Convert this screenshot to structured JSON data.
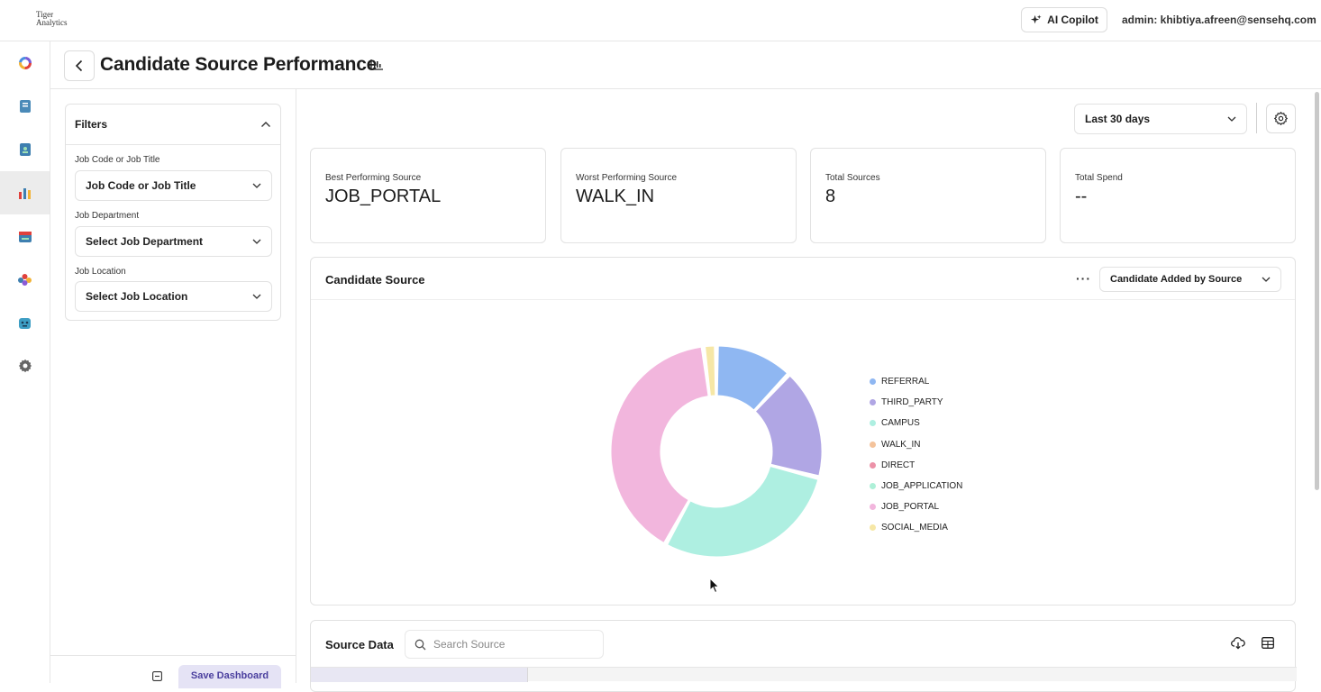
{
  "brand": {
    "line1": "Tiger",
    "line2": "Analytics"
  },
  "header": {
    "copilot_label": "AI Copilot",
    "admin_label": "admin: khibtiya.afreen@sensehq.com"
  },
  "sidebar": {
    "items": [
      {
        "icon": "ring-logo-icon"
      },
      {
        "icon": "notebook-icon"
      },
      {
        "icon": "document-user-icon"
      },
      {
        "icon": "bar-chart-icon",
        "active": true
      },
      {
        "icon": "calendar-icon"
      },
      {
        "icon": "team-icon"
      },
      {
        "icon": "robot-icon"
      },
      {
        "icon": "gear-icon"
      }
    ]
  },
  "page": {
    "title": "Candidate Source Performance",
    "back_icon": "chevron-left-icon"
  },
  "filters": {
    "title": "Filters",
    "fields": [
      {
        "label": "Job Code or Job Title",
        "value": "Job Code or Job Title"
      },
      {
        "label": "Job Department",
        "value": "Select Job Department"
      },
      {
        "label": "Job Location",
        "value": "Select Job Location"
      }
    ],
    "save_label": "Save Dashboard"
  },
  "controls": {
    "date_range": "Last 30 days"
  },
  "stats": [
    {
      "label": "Best Performing Source",
      "value": "JOB_PORTAL"
    },
    {
      "label": "Worst Performing Source",
      "value": "WALK_IN"
    },
    {
      "label": "Total Sources",
      "value": "8"
    },
    {
      "label": "Total Spend",
      "value": "--"
    }
  ],
  "chart": {
    "title": "Candidate Source",
    "more_label": "···",
    "type_selector": "Candidate Added by Source"
  },
  "chart_data": {
    "type": "pie",
    "categories": [
      "REFERRAL",
      "THIRD_PARTY",
      "CAMPUS",
      "WALK_IN",
      "DIRECT",
      "JOB_APPLICATION",
      "JOB_PORTAL",
      "SOCIAL_MEDIA"
    ],
    "values": [
      12,
      17,
      29,
      0,
      0,
      0,
      40,
      2
    ],
    "colors": [
      "#8fb7f2",
      "#b0a6e4",
      "#aeefe1",
      "#f4c39b",
      "#ec92a8",
      "#aef0d8",
      "#f2b6dd",
      "#f6e7a6"
    ],
    "legend_position": "right"
  },
  "source_data": {
    "title": "Source Data",
    "search_placeholder": "Search Source"
  }
}
